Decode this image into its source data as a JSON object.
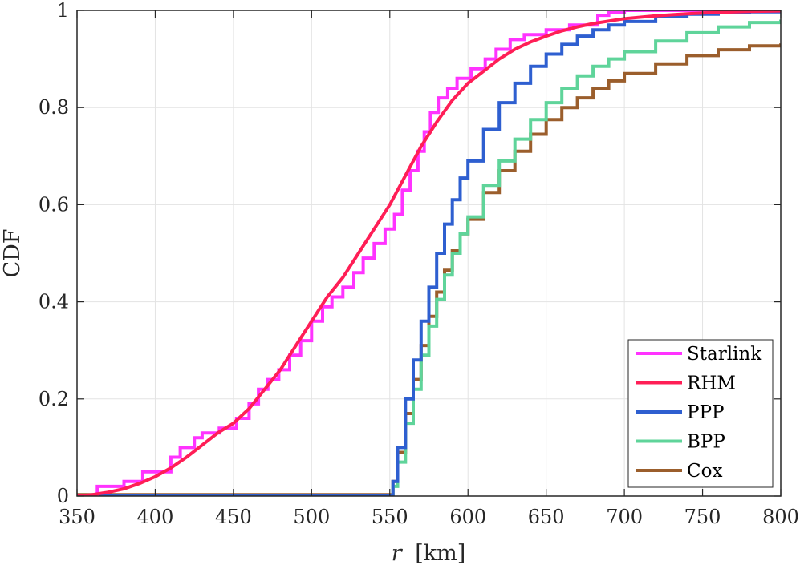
{
  "chart_data": {
    "type": "line",
    "title": "",
    "xlabel": "r [km]",
    "xlabel_var": "r",
    "xlabel_unit": "[km]",
    "ylabel": "CDF",
    "xlim": [
      350,
      800
    ],
    "ylim": [
      0,
      1
    ],
    "x_ticks": [
      "350",
      "400",
      "450",
      "500",
      "550",
      "600",
      "650",
      "700",
      "750",
      "800"
    ],
    "y_ticks": [
      "0",
      "0.2",
      "0.4",
      "0.6",
      "0.8",
      "1"
    ],
    "grid": true,
    "legend_position": "bottom-right",
    "series": [
      {
        "name": "Starlink",
        "color": "#ff33ff",
        "style": "stairs",
        "x": [
          350,
          363,
          380,
          392,
          410,
          416,
          425,
          430,
          441,
          452,
          460,
          466,
          472,
          479,
          486,
          493,
          500,
          507,
          513,
          520,
          527,
          533,
          540,
          547,
          553,
          558,
          563,
          568,
          572,
          576,
          581,
          587,
          593,
          602,
          611,
          618,
          627,
          636,
          650,
          665,
          683,
          690,
          700,
          720,
          800
        ],
        "y": [
          0,
          0.02,
          0.03,
          0.05,
          0.08,
          0.1,
          0.12,
          0.13,
          0.14,
          0.16,
          0.19,
          0.22,
          0.24,
          0.26,
          0.29,
          0.32,
          0.36,
          0.39,
          0.41,
          0.43,
          0.46,
          0.49,
          0.52,
          0.55,
          0.58,
          0.63,
          0.67,
          0.71,
          0.75,
          0.79,
          0.82,
          0.84,
          0.86,
          0.88,
          0.9,
          0.92,
          0.94,
          0.95,
          0.96,
          0.97,
          0.99,
          0.995,
          1.0,
          1.0,
          1.0
        ]
      },
      {
        "name": "RHM",
        "color": "#ff1e56",
        "x": [
          350,
          360,
          370,
          380,
          390,
          400,
          410,
          420,
          430,
          440,
          450,
          460,
          470,
          480,
          490,
          500,
          510,
          520,
          530,
          540,
          550,
          560,
          570,
          580,
          590,
          600,
          610,
          620,
          630,
          640,
          650,
          660,
          670,
          680,
          690,
          700,
          720,
          740,
          760,
          780,
          800
        ],
        "y": [
          0.0,
          0.003,
          0.008,
          0.015,
          0.026,
          0.04,
          0.058,
          0.08,
          0.105,
          0.13,
          0.15,
          0.18,
          0.22,
          0.26,
          0.31,
          0.36,
          0.41,
          0.45,
          0.5,
          0.55,
          0.6,
          0.66,
          0.72,
          0.77,
          0.815,
          0.85,
          0.875,
          0.9,
          0.92,
          0.935,
          0.947,
          0.958,
          0.966,
          0.973,
          0.978,
          0.983,
          0.989,
          0.993,
          0.996,
          0.998,
          0.999
        ]
      },
      {
        "name": "PPP",
        "color": "#2e5fd0",
        "style": "stairs",
        "x": [
          350,
          550,
          552,
          555,
          560,
          565,
          570,
          575,
          580,
          585,
          590,
          595,
          600,
          610,
          620,
          630,
          640,
          650,
          660,
          670,
          680,
          690,
          700,
          720,
          740,
          760,
          780,
          800
        ],
        "y": [
          0,
          0,
          0.03,
          0.1,
          0.2,
          0.28,
          0.36,
          0.43,
          0.5,
          0.56,
          0.61,
          0.655,
          0.69,
          0.755,
          0.81,
          0.85,
          0.885,
          0.91,
          0.93,
          0.947,
          0.96,
          0.97,
          0.977,
          0.987,
          0.992,
          0.995,
          0.997,
          0.998
        ]
      },
      {
        "name": "BPP",
        "color": "#5fd49a",
        "style": "stairs",
        "x": [
          350,
          550,
          552,
          555,
          560,
          565,
          570,
          575,
          580,
          585,
          590,
          595,
          600,
          610,
          620,
          630,
          640,
          650,
          660,
          670,
          680,
          690,
          700,
          720,
          740,
          760,
          780,
          800
        ],
        "y": [
          0,
          0,
          0.02,
          0.07,
          0.15,
          0.22,
          0.29,
          0.35,
          0.405,
          0.455,
          0.5,
          0.54,
          0.575,
          0.64,
          0.69,
          0.735,
          0.775,
          0.81,
          0.84,
          0.865,
          0.885,
          0.9,
          0.915,
          0.937,
          0.954,
          0.966,
          0.975,
          0.981
        ]
      },
      {
        "name": "Cox",
        "color": "#9b5e2c",
        "style": "stairs",
        "x": [
          350,
          550,
          552,
          555,
          560,
          565,
          570,
          575,
          580,
          585,
          590,
          595,
          600,
          610,
          620,
          630,
          640,
          650,
          660,
          670,
          680,
          690,
          700,
          720,
          740,
          760,
          780,
          800
        ],
        "y": [
          0.003,
          0.003,
          0.03,
          0.09,
          0.17,
          0.24,
          0.31,
          0.37,
          0.42,
          0.465,
          0.505,
          0.54,
          0.57,
          0.625,
          0.67,
          0.71,
          0.745,
          0.775,
          0.8,
          0.82,
          0.84,
          0.855,
          0.87,
          0.89,
          0.907,
          0.919,
          0.927,
          0.932
        ]
      }
    ]
  }
}
